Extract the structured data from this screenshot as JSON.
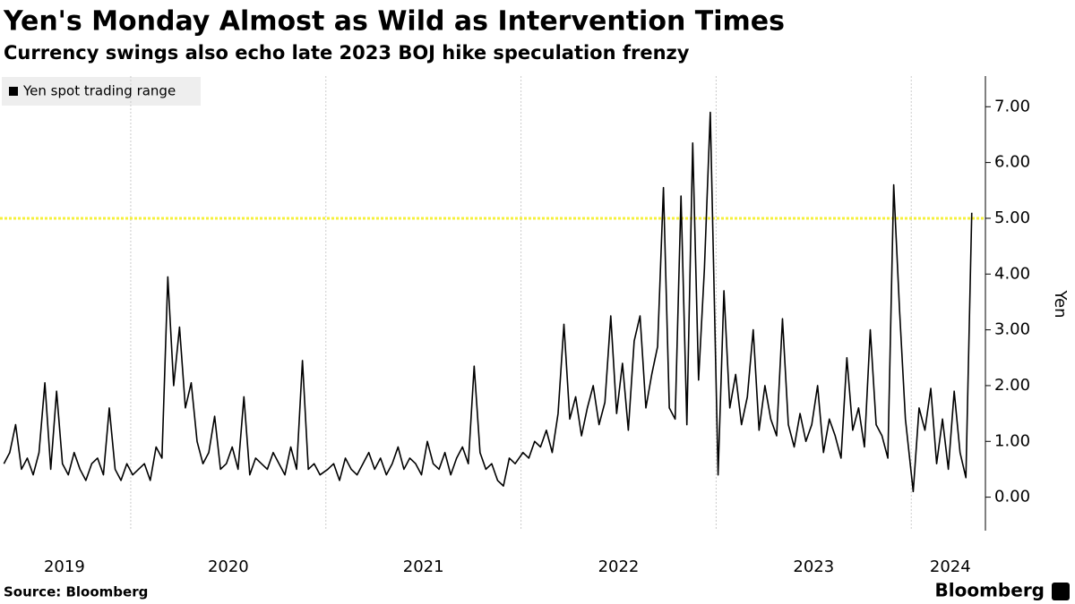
{
  "chart_data": {
    "type": "line",
    "title": "Yen's Monday Almost as Wild as Intervention Times",
    "subtitle": "Currency swings also echo late 2023 BOJ hike speculation frenzy",
    "y_axis_label": "Yen",
    "source": "Source: Bloomberg",
    "brand": "Bloomberg",
    "threshold": 5,
    "threshold_color": "#f5f03c",
    "xlim": [
      2019.33,
      2024.38
    ],
    "ylim": [
      -0.6,
      7.55
    ],
    "xgrid": [
      2020,
      2021,
      2022,
      2023,
      2024
    ],
    "xticks": [
      {
        "value": 2019.66,
        "label": "2019"
      },
      {
        "value": 2020.5,
        "label": "2020"
      },
      {
        "value": 2021.5,
        "label": "2021"
      },
      {
        "value": 2022.5,
        "label": "2022"
      },
      {
        "value": 2023.5,
        "label": "2023"
      },
      {
        "value": 2024.2,
        "label": "2024"
      }
    ],
    "yticks": [
      {
        "value": 0,
        "label": "0.00"
      },
      {
        "value": 1,
        "label": "1.00"
      },
      {
        "value": 2,
        "label": "2.00"
      },
      {
        "value": 3,
        "label": "3.00"
      },
      {
        "value": 4,
        "label": "4.00"
      },
      {
        "value": 5,
        "label": "5.00"
      },
      {
        "value": 6,
        "label": "6.00"
      },
      {
        "value": 7,
        "label": "7.00"
      }
    ],
    "x": [
      2019.35,
      2019.38,
      2019.41,
      2019.44,
      2019.47,
      2019.5,
      2019.53,
      2019.56,
      2019.59,
      2019.62,
      2019.65,
      2019.68,
      2019.71,
      2019.74,
      2019.77,
      2019.8,
      2019.83,
      2019.86,
      2019.89,
      2019.92,
      2019.95,
      2019.98,
      2020.01,
      2020.04,
      2020.07,
      2020.1,
      2020.13,
      2020.16,
      2020.19,
      2020.22,
      2020.25,
      2020.28,
      2020.31,
      2020.34,
      2020.37,
      2020.4,
      2020.43,
      2020.46,
      2020.49,
      2020.52,
      2020.55,
      2020.58,
      2020.61,
      2020.64,
      2020.67,
      2020.7,
      2020.73,
      2020.76,
      2020.79,
      2020.82,
      2020.85,
      2020.88,
      2020.91,
      2020.94,
      2020.97,
      2021.01,
      2021.04,
      2021.07,
      2021.1,
      2021.13,
      2021.16,
      2021.19,
      2021.22,
      2021.25,
      2021.28,
      2021.31,
      2021.34,
      2021.37,
      2021.4,
      2021.43,
      2021.46,
      2021.49,
      2021.52,
      2021.55,
      2021.58,
      2021.61,
      2021.64,
      2021.67,
      2021.7,
      2021.73,
      2021.76,
      2021.79,
      2021.82,
      2021.85,
      2021.88,
      2021.91,
      2021.94,
      2021.97,
      2022.01,
      2022.04,
      2022.07,
      2022.1,
      2022.13,
      2022.16,
      2022.19,
      2022.22,
      2022.25,
      2022.28,
      2022.31,
      2022.34,
      2022.37,
      2022.4,
      2022.43,
      2022.46,
      2022.49,
      2022.52,
      2022.55,
      2022.58,
      2022.61,
      2022.64,
      2022.67,
      2022.7,
      2022.73,
      2022.76,
      2022.79,
      2022.82,
      2022.85,
      2022.88,
      2022.91,
      2022.94,
      2022.97,
      2023.01,
      2023.04,
      2023.07,
      2023.1,
      2023.13,
      2023.16,
      2023.19,
      2023.22,
      2023.25,
      2023.28,
      2023.31,
      2023.34,
      2023.37,
      2023.4,
      2023.43,
      2023.46,
      2023.49,
      2023.52,
      2023.55,
      2023.58,
      2023.61,
      2023.64,
      2023.67,
      2023.7,
      2023.73,
      2023.76,
      2023.79,
      2023.82,
      2023.85,
      2023.88,
      2023.91,
      2023.94,
      2023.97,
      2024.01,
      2024.04,
      2024.07,
      2024.1,
      2024.13,
      2024.16,
      2024.19,
      2024.22,
      2024.25,
      2024.28,
      2024.31
    ],
    "series": [
      {
        "name": "Yen spot trading range",
        "color": "#000000",
        "values": [
          0.6,
          0.8,
          1.3,
          0.5,
          0.7,
          0.4,
          0.8,
          2.05,
          0.5,
          1.9,
          0.6,
          0.4,
          0.8,
          0.5,
          0.3,
          0.6,
          0.7,
          0.4,
          1.6,
          0.5,
          0.3,
          0.6,
          0.4,
          0.5,
          0.6,
          0.3,
          0.9,
          0.7,
          3.95,
          2.0,
          3.05,
          1.6,
          2.05,
          1.0,
          0.6,
          0.8,
          1.45,
          0.5,
          0.6,
          0.9,
          0.5,
          1.8,
          0.4,
          0.7,
          0.6,
          0.5,
          0.8,
          0.6,
          0.4,
          0.9,
          0.5,
          2.45,
          0.5,
          0.6,
          0.4,
          0.5,
          0.6,
          0.3,
          0.7,
          0.5,
          0.4,
          0.6,
          0.8,
          0.5,
          0.7,
          0.4,
          0.6,
          0.9,
          0.5,
          0.7,
          0.6,
          0.4,
          1.0,
          0.6,
          0.5,
          0.8,
          0.4,
          0.7,
          0.9,
          0.6,
          2.35,
          0.8,
          0.5,
          0.6,
          0.3,
          0.2,
          0.7,
          0.6,
          0.8,
          0.7,
          1.0,
          0.9,
          1.2,
          0.8,
          1.5,
          3.1,
          1.4,
          1.8,
          1.1,
          1.6,
          2.0,
          1.3,
          1.7,
          3.25,
          1.5,
          2.4,
          1.2,
          2.8,
          3.25,
          1.6,
          2.2,
          2.7,
          5.55,
          1.6,
          1.4,
          5.4,
          1.3,
          6.35,
          2.1,
          4.1,
          6.9,
          0.4,
          3.7,
          1.6,
          2.2,
          1.3,
          1.8,
          3.0,
          1.2,
          2.0,
          1.4,
          1.1,
          3.2,
          1.3,
          0.9,
          1.5,
          1.0,
          1.3,
          2.0,
          0.8,
          1.4,
          1.1,
          0.7,
          2.5,
          1.2,
          1.6,
          0.9,
          3.0,
          1.3,
          1.1,
          0.7,
          5.6,
          3.35,
          1.4,
          0.1,
          1.6,
          1.2,
          1.95,
          0.6,
          1.4,
          0.5,
          1.9,
          0.8,
          0.35,
          5.1
        ]
      }
    ]
  }
}
